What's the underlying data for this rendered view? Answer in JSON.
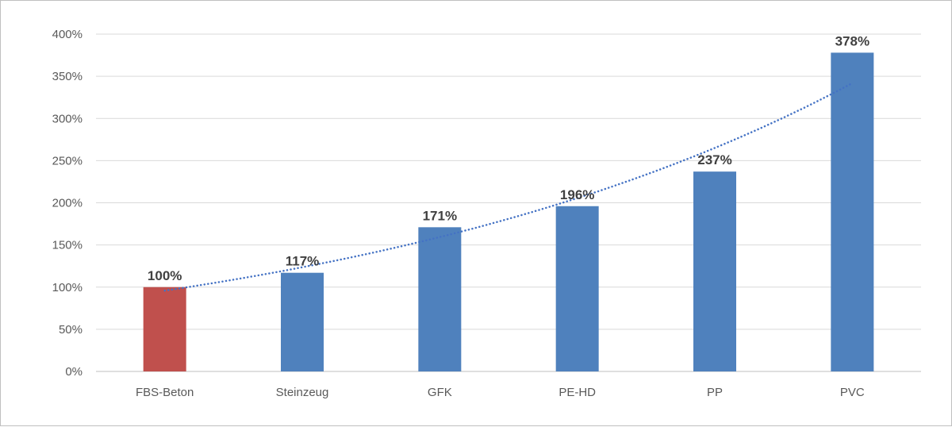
{
  "chart_data": {
    "type": "bar",
    "categories": [
      "FBS-Beton",
      "Steinzeug",
      "GFK",
      "PE-HD",
      "PP",
      "PVC"
    ],
    "values": [
      100,
      117,
      171,
      196,
      237,
      378
    ],
    "data_labels": [
      "100%",
      "117%",
      "171%",
      "196%",
      "237%",
      "378%"
    ],
    "bar_colors": [
      "#c0504d",
      "#4f81bd",
      "#4f81bd",
      "#4f81bd",
      "#4f81bd",
      "#4f81bd"
    ],
    "y_ticks": [
      0,
      50,
      100,
      150,
      200,
      250,
      300,
      350,
      400
    ],
    "y_tick_labels": [
      "0%",
      "50%",
      "100%",
      "150%",
      "200%",
      "250%",
      "300%",
      "350%",
      "400%"
    ],
    "ylim": [
      0,
      400
    ],
    "grid": true,
    "trendline": {
      "type": "exponential",
      "style": "dotted",
      "color": "#4472c4"
    },
    "title": "",
    "xlabel": "",
    "ylabel": ""
  }
}
